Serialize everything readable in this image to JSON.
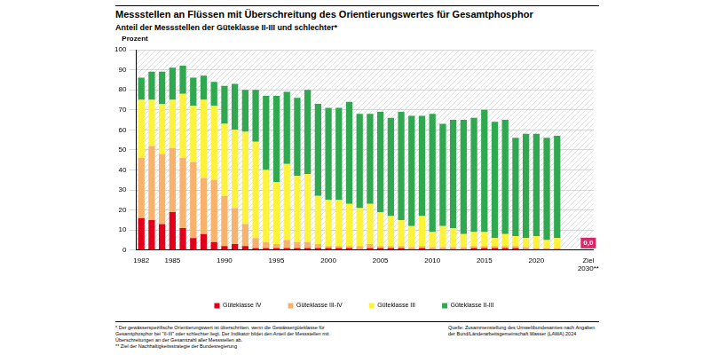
{
  "title": "Messstellen an Flüssen mit Überschreitung des Orientierungswertes für Gesamtphosphor",
  "subtitle": "Anteil der Messstellen der Güteklasse II-III und schlechter*",
  "footnotes": [
    "* Der gewässerspezifische Orientierungswert ist überschritten, wenn die Gewässergüteklasse für Gesamtphosphor bei \"II-III\" oder schlechter liegt. Der Indikator bildet den Anteil der Messstellen mit Überschreitungen an der Gesamtzahl aller Messstellen ab.",
    "** Ziel der Nachhaltigkeitsstrategie der Bundesregierung"
  ],
  "source": "Quelle: Zusammenstellung des Umweltbundesamtes nach Angaben der Bund/Länderarbeitsgemeinschaft Wasser (LAWA) 2024",
  "chart_data": {
    "type": "bar",
    "stacked": true,
    "grid": true,
    "legend": "bottom",
    "y_label": "Prozent",
    "ylim": [
      0,
      100
    ],
    "yticks": [
      0,
      10,
      20,
      30,
      40,
      50,
      60,
      70,
      80,
      90,
      100
    ],
    "categories": [
      "1982",
      null,
      null,
      "1985",
      null,
      null,
      null,
      null,
      "1990",
      null,
      null,
      null,
      null,
      "1995",
      null,
      null,
      null,
      null,
      "2000",
      null,
      null,
      null,
      null,
      "2005",
      null,
      null,
      null,
      null,
      "2010",
      null,
      null,
      null,
      null,
      "2015",
      null,
      null,
      null,
      null,
      "2020",
      null,
      null,
      null,
      null,
      "Ziel 2030**"
    ],
    "series": [
      {
        "name": "Güteklasse IV",
        "color": "#e2001a",
        "values": [
          16,
          15,
          13,
          19,
          11,
          6,
          8,
          4,
          2,
          3,
          2,
          1,
          1,
          1,
          1,
          1,
          1,
          1,
          1,
          1,
          1,
          0.5,
          1,
          1,
          1,
          1,
          0.5,
          1,
          0.5,
          0.5,
          0.5,
          0.5,
          1,
          1,
          1,
          1,
          1,
          0.5,
          0.5,
          0.5,
          0.5,
          null,
          null,
          null
        ]
      },
      {
        "name": "Güteklasse III-IV",
        "color": "#f9b26c",
        "values": [
          30,
          37,
          35,
          32,
          35,
          38,
          28,
          31,
          25,
          18,
          11,
          5,
          3,
          2,
          4,
          3,
          3,
          2,
          1,
          1,
          1,
          1.5,
          2,
          1,
          1,
          1,
          1,
          1,
          1,
          1,
          1,
          1,
          1,
          1,
          1,
          1,
          1,
          1,
          0.5,
          0.5,
          0.5,
          null,
          null,
          null
        ]
      },
      {
        "name": "Güteklasse III",
        "color": "#fff23a",
        "values": [
          29,
          23,
          25,
          24,
          32,
          28,
          39,
          37,
          36,
          39,
          46,
          48,
          36,
          31,
          38,
          33,
          34,
          24,
          23,
          23,
          21,
          19,
          20,
          17,
          15,
          13,
          10.5,
          15,
          7.5,
          10.5,
          9.5,
          6.5,
          7,
          7,
          4,
          6,
          5,
          4.5,
          6,
          4,
          5,
          null,
          null,
          null
        ]
      },
      {
        "name": "Güteklasse II-III",
        "color": "#2fa84f",
        "values": [
          11,
          14,
          16,
          16,
          14,
          14,
          12,
          12,
          19,
          23,
          21,
          26,
          37,
          43,
          36,
          39,
          42,
          46,
          46,
          46,
          51,
          47,
          45,
          50,
          49,
          54,
          55,
          50,
          59,
          51,
          54,
          57,
          57,
          61,
          58,
          57,
          49,
          52,
          51,
          51,
          51,
          null,
          null,
          null
        ]
      }
    ],
    "target": {
      "category": "Ziel 2030**",
      "value": 0,
      "label": "0,0",
      "color": "#d4296b"
    }
  }
}
